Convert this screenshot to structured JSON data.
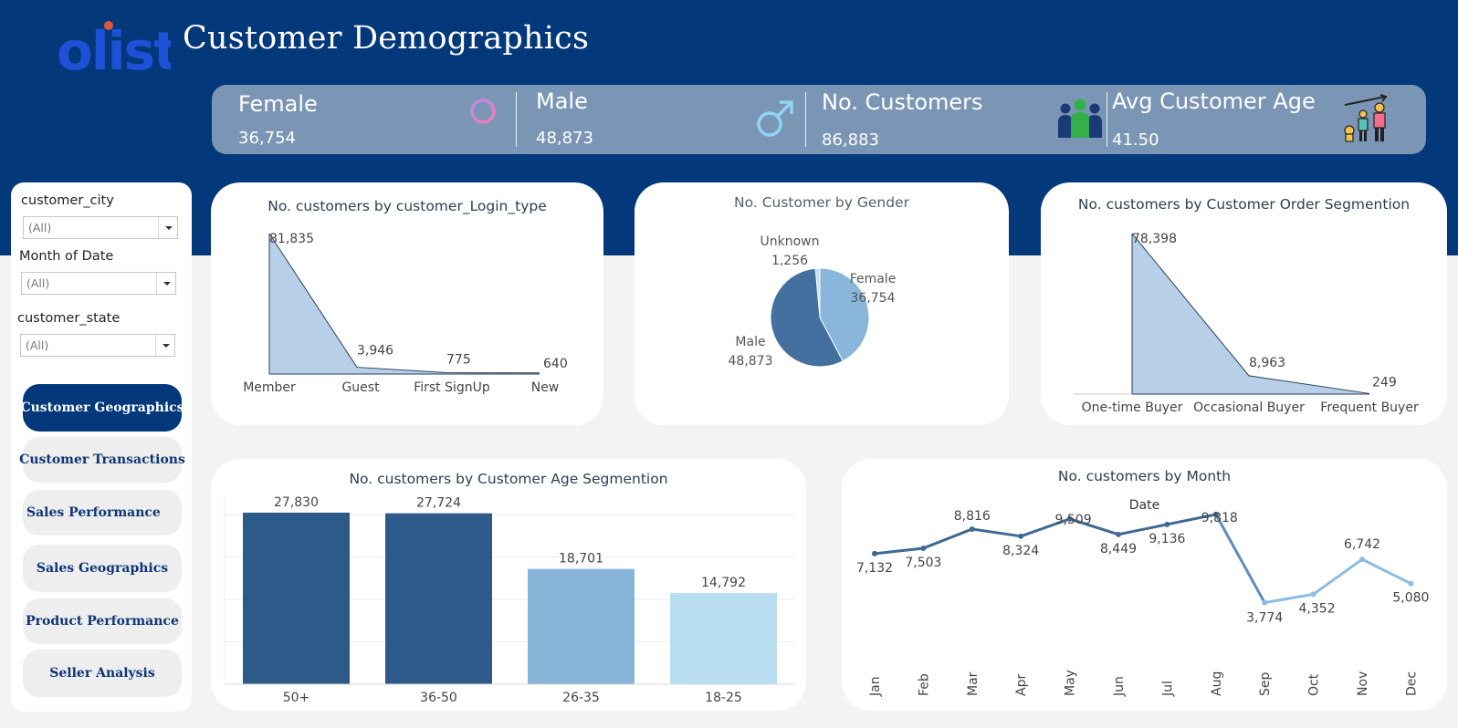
{
  "header": {
    "logo_text": "olist",
    "title": "Customer Demographics"
  },
  "kpis": [
    {
      "label": "Female",
      "value": "36,754",
      "icon": "female-symbol-icon"
    },
    {
      "label": "Male",
      "value": "48,873",
      "icon": "male-symbol-icon"
    },
    {
      "label": "No. Customers",
      "value": "86,883",
      "icon": "people-group-icon"
    },
    {
      "label": "Avg Customer Age",
      "value": "41.50",
      "icon": "age-growth-icon"
    }
  ],
  "filters": [
    {
      "label": "customer_city",
      "value": "(All)"
    },
    {
      "label": "Month of Date",
      "value": "(All)"
    },
    {
      "label": "customer_state",
      "value": "(All)"
    }
  ],
  "nav": [
    {
      "label": "Customer Geographics",
      "active": true
    },
    {
      "label": "Customer Transactions",
      "active": false
    },
    {
      "label": "Sales Performance",
      "active": false
    },
    {
      "label": "Sales  Geographics",
      "active": false
    },
    {
      "label": "Product Performance",
      "active": false
    },
    {
      "label": "Seller Analysis",
      "active": false
    }
  ],
  "colors": {
    "header_bg": "#03387a",
    "kpi_bg": "#7b96b5",
    "area_fill": "#b7d0e8",
    "bar_dark": "#2d5a88",
    "bar_mid": "#87b5d8",
    "bar_light": "#b9def1",
    "pie_male": "#44709f",
    "pie_female": "#8ab6db",
    "pie_unknown": "#c5dcee",
    "line_dark": "#3d6995",
    "line_light": "#8fbce0"
  },
  "chart_data": [
    {
      "type": "area",
      "title": "No. customers by customer_Login_type",
      "categories": [
        "Member",
        "Guest",
        "First SignUp",
        "New"
      ],
      "values": [
        81835,
        3946,
        775,
        640
      ],
      "value_labels": [
        "81,835",
        "3,946",
        "775",
        "640"
      ]
    },
    {
      "type": "pie",
      "title": "No. Customer by Gender",
      "categories": [
        "Female",
        "Male",
        "Unknown"
      ],
      "values": [
        36754,
        48873,
        1256
      ],
      "value_labels": [
        "36,754",
        "48,873",
        "1,256"
      ]
    },
    {
      "type": "area",
      "title": "No. customers by Customer Order Segmention",
      "categories": [
        "One-time Buyer",
        "Occasional Buyer",
        "Frequent Buyer"
      ],
      "values": [
        78398,
        8963,
        249
      ],
      "value_labels": [
        "78,398",
        "8,963",
        "249"
      ]
    },
    {
      "type": "bar",
      "title": "No. customers by Customer Age Segmention",
      "categories": [
        "50+",
        "36-50",
        "26-35",
        "18-25"
      ],
      "values": [
        27830,
        27724,
        18701,
        14792
      ],
      "value_labels": [
        "27,830",
        "27,724",
        "18,701",
        "14,792"
      ],
      "grid": true
    },
    {
      "type": "line",
      "title": "No. customers  by Month",
      "xlabel": "Date",
      "categories": [
        "Jan",
        "Feb",
        "Mar",
        "Apr",
        "May",
        "Jun",
        "Jul",
        "Aug",
        "Sep",
        "Oct",
        "Nov",
        "Dec"
      ],
      "values": [
        7132,
        7503,
        8816,
        8324,
        9509,
        8449,
        9136,
        9818,
        3774,
        4352,
        6742,
        5080
      ],
      "value_labels": [
        "7,132",
        "7,503",
        "8,816",
        "8,324",
        "9,509",
        "8,449",
        "9,136",
        "9,818",
        "3,774",
        "4,352",
        "6,742",
        "5,080"
      ]
    }
  ]
}
